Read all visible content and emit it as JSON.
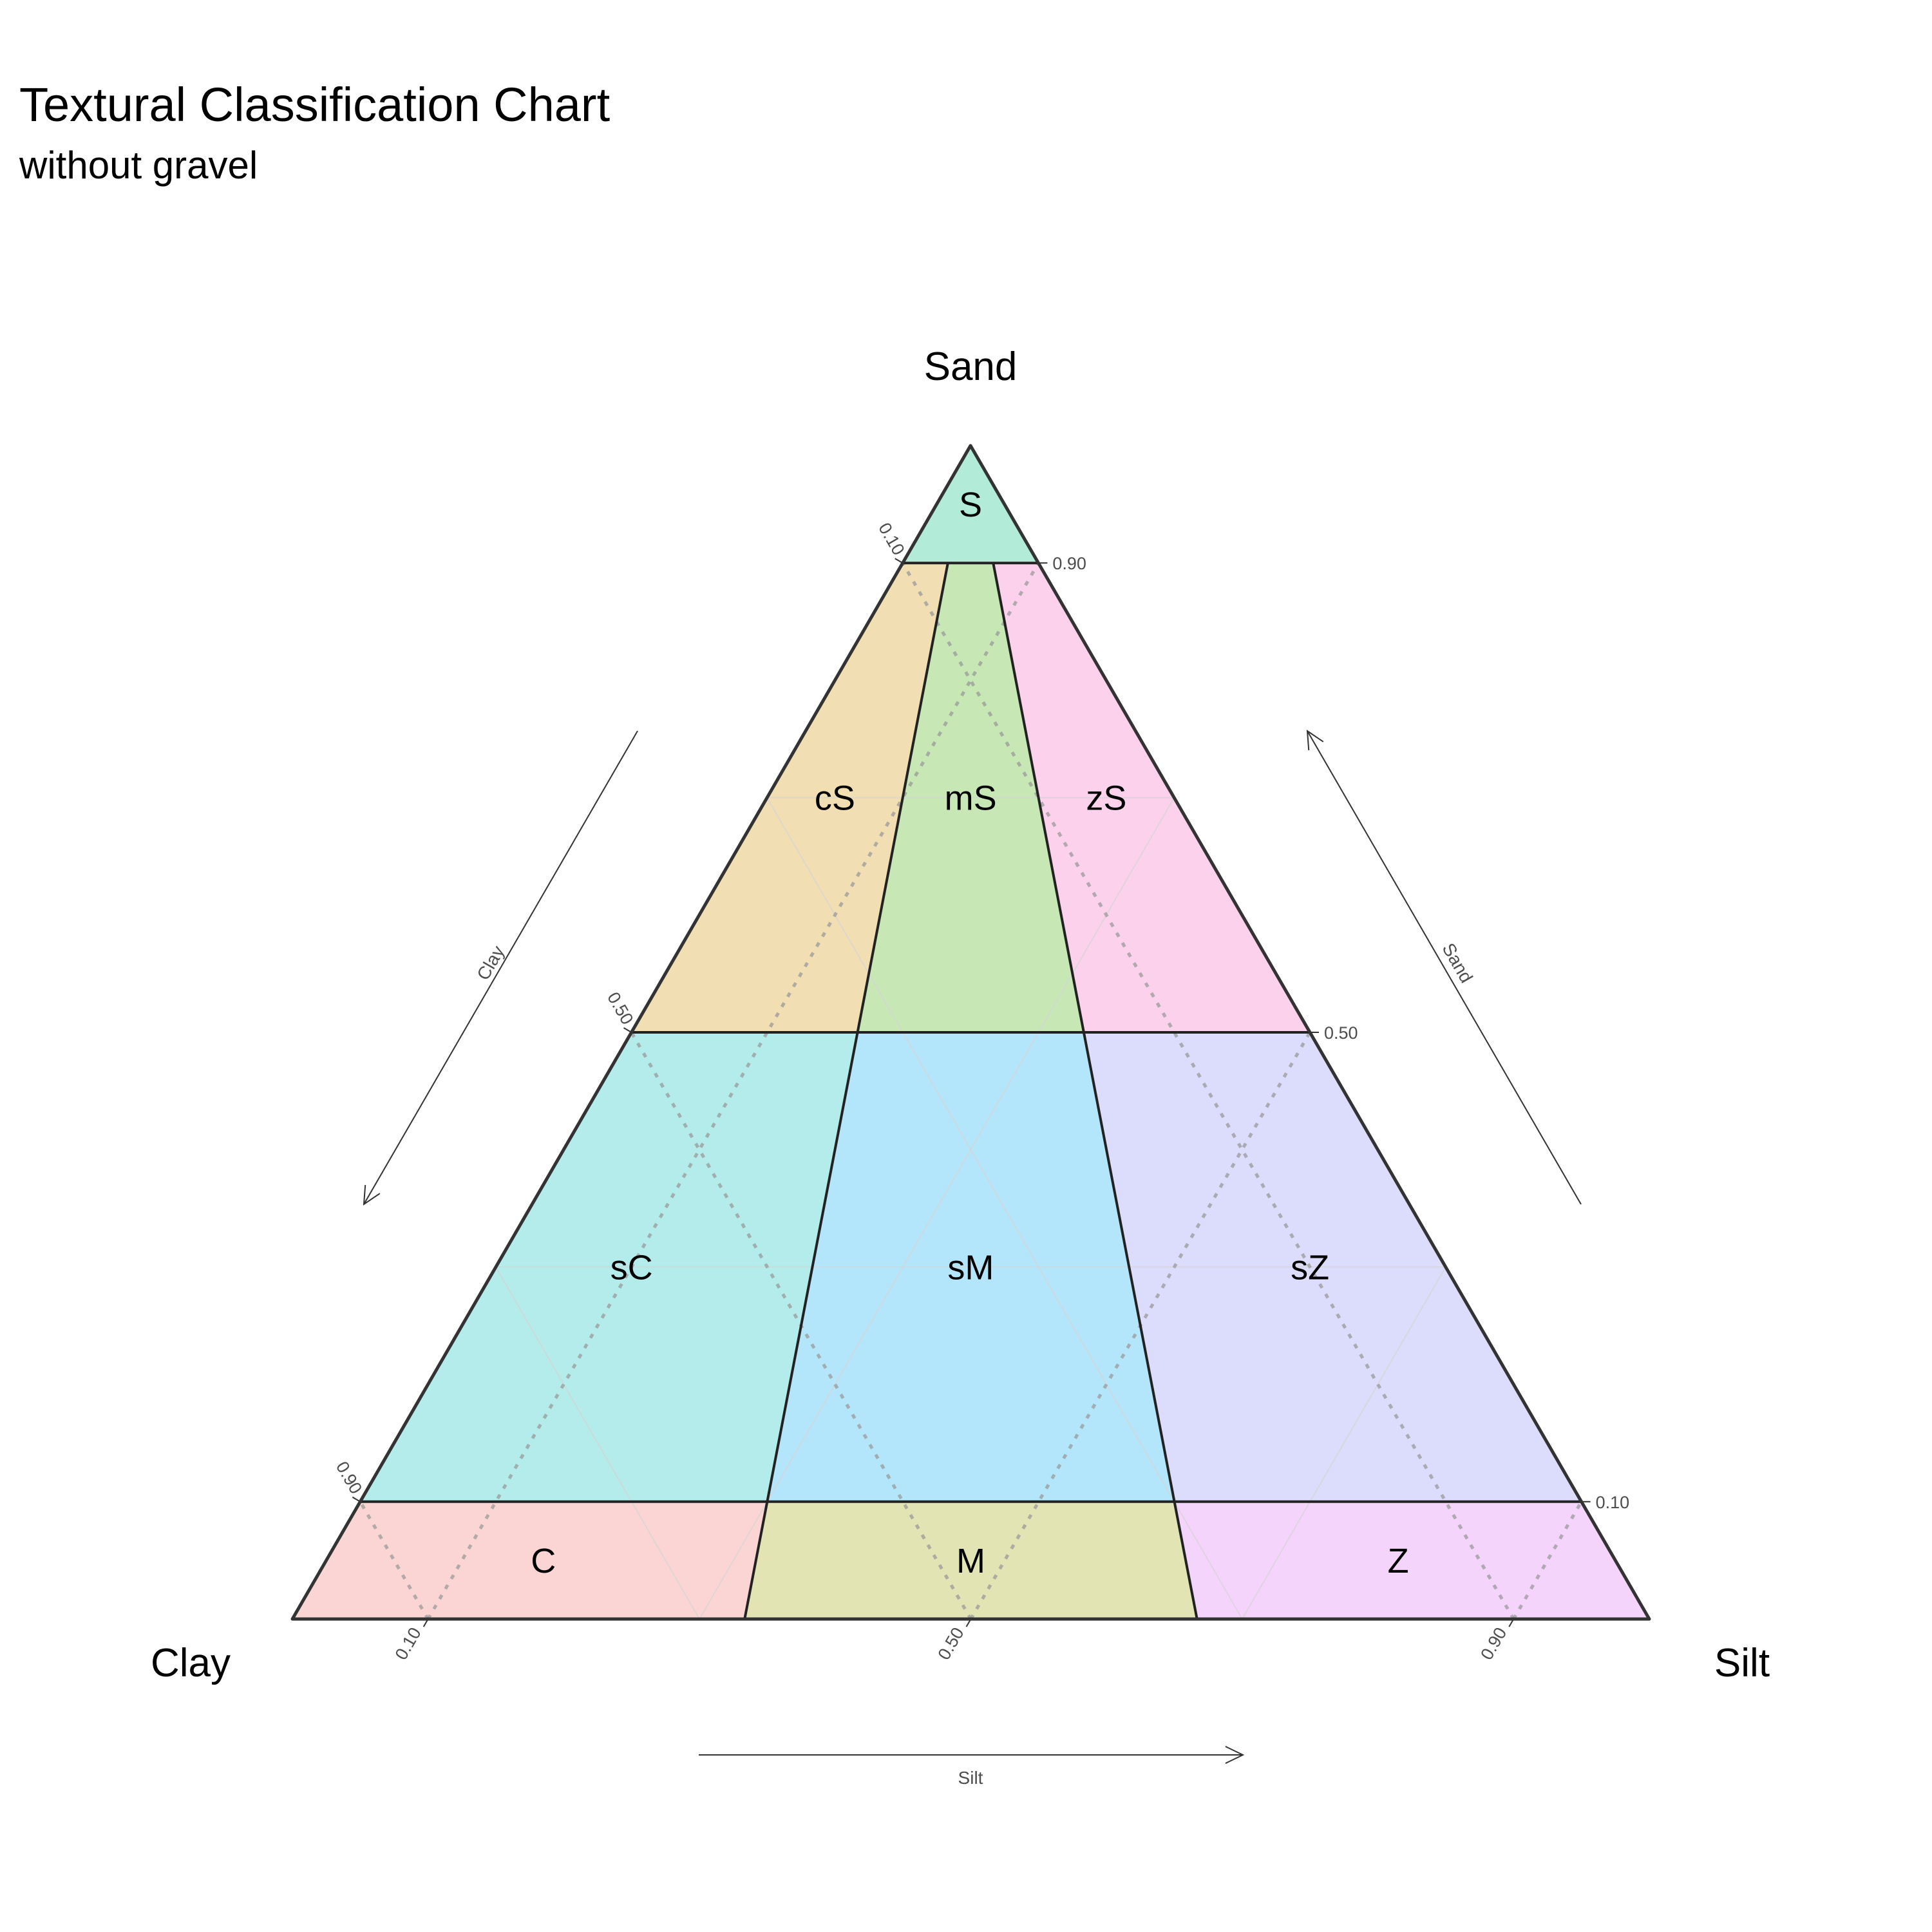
{
  "chart_data": {
    "type": "ternary",
    "title": "Textural Classification Chart",
    "subtitle": "without gravel",
    "axes": {
      "top": "Sand",
      "left": "Clay",
      "right": "Silt"
    },
    "arrows": {
      "left": "Clay",
      "right": "Sand",
      "bottom": "Silt"
    },
    "ticks": {
      "sand": [
        "0.10",
        "0.50",
        "0.90"
      ],
      "clay": [
        "0.10",
        "0.50",
        "0.90"
      ],
      "silt": [
        "0.10",
        "0.50",
        "0.90"
      ]
    },
    "grid": true,
    "regions": [
      {
        "label": "S",
        "color": "#b2ecd9",
        "vertices": [
          {
            "sand": 1.0,
            "silt": 0.0
          },
          {
            "sand": 0.9,
            "silt": 0.1
          },
          {
            "sand": 0.9,
            "silt": 0.0
          }
        ],
        "label_at": {
          "sand": 0.95,
          "silt": 0.025
        }
      },
      {
        "label": "cS",
        "color": "#f1dfb3",
        "vertices": [
          {
            "sand": 0.9,
            "silt": 0.0
          },
          {
            "sand": 0.9,
            "silt": 0.0333
          },
          {
            "sand": 0.5,
            "silt": 0.1667
          },
          {
            "sand": 0.5,
            "silt": 0.0
          }
        ],
        "label_at": {
          "sand": 0.7,
          "silt": 0.05
        }
      },
      {
        "label": "mS",
        "color": "#c7e8b5",
        "vertices": [
          {
            "sand": 0.9,
            "silt": 0.0333
          },
          {
            "sand": 0.9,
            "silt": 0.0667
          },
          {
            "sand": 0.5,
            "silt": 0.3333
          },
          {
            "sand": 0.5,
            "silt": 0.1667
          }
        ],
        "label_at": {
          "sand": 0.7,
          "silt": 0.15
        }
      },
      {
        "label": "zS",
        "color": "#fcd1ec",
        "vertices": [
          {
            "sand": 0.9,
            "silt": 0.0667
          },
          {
            "sand": 0.9,
            "silt": 0.1
          },
          {
            "sand": 0.5,
            "silt": 0.5
          },
          {
            "sand": 0.5,
            "silt": 0.3333
          }
        ],
        "label_at": {
          "sand": 0.7,
          "silt": 0.25
        }
      },
      {
        "label": "sC",
        "color": "#b3eceb",
        "vertices": [
          {
            "sand": 0.5,
            "silt": 0.0
          },
          {
            "sand": 0.5,
            "silt": 0.1667
          },
          {
            "sand": 0.1,
            "silt": 0.3
          },
          {
            "sand": 0.1,
            "silt": 0.0
          }
        ],
        "label_at": {
          "sand": 0.3,
          "silt": 0.1
        }
      },
      {
        "label": "sM",
        "color": "#b3e6fa",
        "vertices": [
          {
            "sand": 0.5,
            "silt": 0.1667
          },
          {
            "sand": 0.5,
            "silt": 0.3333
          },
          {
            "sand": 0.1,
            "silt": 0.6
          },
          {
            "sand": 0.1,
            "silt": 0.3
          }
        ],
        "label_at": {
          "sand": 0.3,
          "silt": 0.35
        }
      },
      {
        "label": "sZ",
        "color": "#dcdcfc",
        "vertices": [
          {
            "sand": 0.5,
            "silt": 0.3333
          },
          {
            "sand": 0.5,
            "silt": 0.5
          },
          {
            "sand": 0.1,
            "silt": 0.9
          },
          {
            "sand": 0.1,
            "silt": 0.6
          }
        ],
        "label_at": {
          "sand": 0.3,
          "silt": 0.6
        }
      },
      {
        "label": "C",
        "color": "#fbd5d3",
        "vertices": [
          {
            "sand": 0.1,
            "silt": 0.0
          },
          {
            "sand": 0.1,
            "silt": 0.3
          },
          {
            "sand": 0.0,
            "silt": 0.3333
          },
          {
            "sand": 0.0,
            "silt": 0.0
          }
        ],
        "label_at": {
          "sand": 0.05,
          "silt": 0.16
        }
      },
      {
        "label": "M",
        "color": "#e3e4b3",
        "vertices": [
          {
            "sand": 0.1,
            "silt": 0.3
          },
          {
            "sand": 0.1,
            "silt": 0.6
          },
          {
            "sand": 0.0,
            "silt": 0.6667
          },
          {
            "sand": 0.0,
            "silt": 0.3333
          }
        ],
        "label_at": {
          "sand": 0.05,
          "silt": 0.475
        }
      },
      {
        "label": "Z",
        "color": "#f4d4fb",
        "vertices": [
          {
            "sand": 0.1,
            "silt": 0.6
          },
          {
            "sand": 0.1,
            "silt": 0.9
          },
          {
            "sand": 0.0,
            "silt": 1.0
          },
          {
            "sand": 0.0,
            "silt": 0.6667
          }
        ],
        "label_at": {
          "sand": 0.05,
          "silt": 0.79
        }
      }
    ]
  }
}
